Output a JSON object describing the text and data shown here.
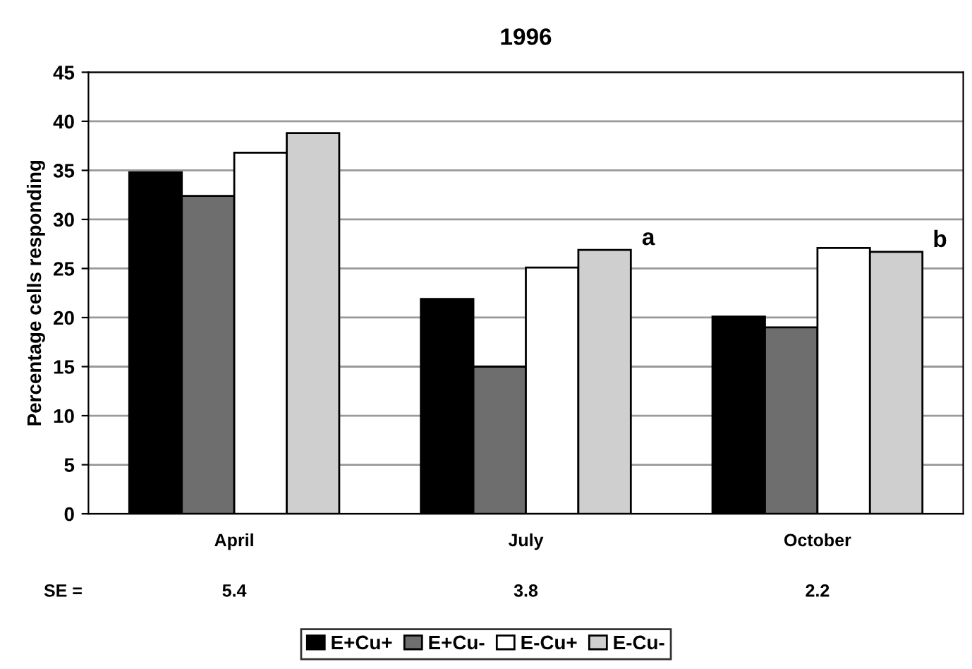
{
  "chart_data": {
    "type": "bar",
    "title": "1996",
    "ylabel": "Percentage cells responding",
    "categories": [
      "April",
      "July",
      "October"
    ],
    "series": [
      {
        "name": "E+Cu+",
        "color": "#000000",
        "values": [
          34.8,
          21.9,
          20.1
        ]
      },
      {
        "name": "E+Cu-",
        "color": "#6e6e6e",
        "values": [
          32.4,
          15.0,
          19.0
        ]
      },
      {
        "name": "E-Cu+",
        "color": "#ffffff",
        "values": [
          36.8,
          25.1,
          27.1
        ]
      },
      {
        "name": "E-Cu-",
        "color": "#cfcfcf",
        "values": [
          38.8,
          26.9,
          26.7
        ]
      }
    ],
    "ylim": [
      0,
      45
    ],
    "yticks": [
      0,
      5,
      10,
      15,
      20,
      25,
      30,
      35,
      40,
      45
    ],
    "grid": "y",
    "legend": "bottom",
    "annotations": [
      "SE =",
      "5.4",
      "3.8",
      "2.2",
      "a",
      "b"
    ]
  }
}
